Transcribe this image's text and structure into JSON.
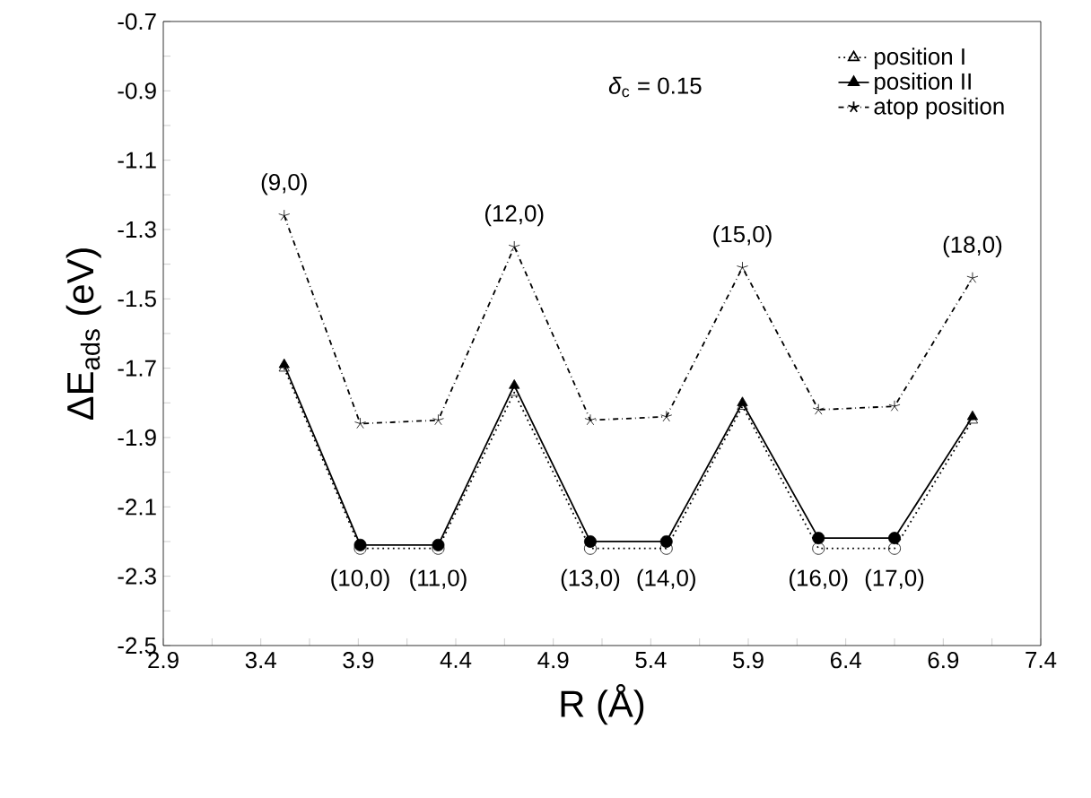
{
  "chart_data": {
    "type": "line",
    "xlabel": "R (Å)",
    "ylabel": "ΔE$_{ads}$ (eV)",
    "x": [
      3.52,
      3.91,
      4.31,
      4.7,
      5.09,
      5.48,
      5.87,
      6.26,
      6.65,
      7.05
    ],
    "series": [
      {
        "name": "position I",
        "color": "#000000",
        "line_style": "dotted",
        "marker": [
          "triangle",
          "circle",
          "circle",
          "triangle",
          "circle",
          "circle",
          "triangle",
          "circle",
          "circle",
          "triangle"
        ],
        "values": [
          -1.7,
          -2.22,
          -2.22,
          -1.77,
          -2.22,
          -2.22,
          -1.81,
          -2.22,
          -2.22,
          -1.85
        ]
      },
      {
        "name": "position II",
        "color": "#000000",
        "line_style": "solid",
        "marker": [
          "triangle",
          "circle",
          "circle",
          "triangle",
          "circle",
          "circle",
          "triangle",
          "circle",
          "circle",
          "triangle"
        ],
        "values": [
          -1.69,
          -2.21,
          -2.21,
          -1.75,
          -2.2,
          -2.2,
          -1.8,
          -2.19,
          -2.19,
          -1.84
        ]
      },
      {
        "name": "atop position",
        "color": "#000000",
        "line_style": "dashdot",
        "marker": [
          "star",
          "star",
          "star",
          "star",
          "star",
          "star",
          "star",
          "star",
          "star",
          "star"
        ],
        "values": [
          -1.26,
          -1.86,
          -1.85,
          -1.35,
          -1.85,
          -1.84,
          -1.41,
          -1.82,
          -1.81,
          -1.44
        ]
      }
    ],
    "xlim": [
      2.9,
      7.4
    ],
    "xticks": [
      2.9,
      {
        "value": 3.15,
        "label": null
      },
      3.4,
      {
        "value": 3.65,
        "label": null
      },
      3.9,
      {
        "value": 4.15,
        "label": null
      },
      4.4,
      {
        "value": 4.65,
        "label": null
      },
      4.9,
      {
        "value": 5.15,
        "label": null
      },
      5.4,
      {
        "value": 5.65,
        "label": null
      },
      5.9,
      {
        "value": 6.15,
        "label": null
      },
      6.4,
      {
        "value": 6.65,
        "label": null
      },
      6.9,
      {
        "value": 7.15,
        "label": null
      },
      7.4
    ],
    "ylim": [
      -2.5,
      -0.7
    ],
    "yticks": [
      -2.5,
      {
        "value": -2.4,
        "label": null
      },
      -2.3,
      {
        "value": -2.2,
        "label": null
      },
      -2.1,
      {
        "value": -2.0,
        "label": null
      },
      -1.9,
      {
        "value": -1.8,
        "label": null
      },
      -1.7,
      {
        "value": -1.6,
        "label": null
      },
      -1.5,
      {
        "value": -1.4,
        "label": null
      },
      -1.3,
      {
        "value": -1.2,
        "label": null
      },
      -1.1,
      {
        "value": -1.0,
        "label": null
      },
      -0.9,
      {
        "value": -0.8,
        "label": null
      },
      -0.7
    ],
    "grid": false,
    "legend": "top right",
    "annotations": [
      "*δ*$_{c}$ = 0.15",
      {
        "text": "(9,0)",
        "x": 3.52,
        "y": -1.26
      },
      {
        "text": "(10,0)",
        "x": 3.91,
        "y": -2.22
      },
      {
        "text": "(11,0)",
        "x": 4.31,
        "y": -2.22
      },
      {
        "text": "(12,0)",
        "x": 4.7,
        "y": -1.35
      },
      {
        "text": "(13,0)",
        "x": 5.09,
        "y": -2.22
      },
      {
        "text": "(14,0)",
        "x": 5.48,
        "y": -2.22
      },
      {
        "text": "(15,0)",
        "x": 5.87,
        "y": -1.41
      },
      {
        "text": "(16,0)",
        "x": 6.26,
        "y": -2.22
      },
      {
        "text": "(17,0)",
        "x": 6.65,
        "y": -2.22
      },
      {
        "text": "(18,0)",
        "x": 7.05,
        "y": -1.44
      }
    ]
  }
}
